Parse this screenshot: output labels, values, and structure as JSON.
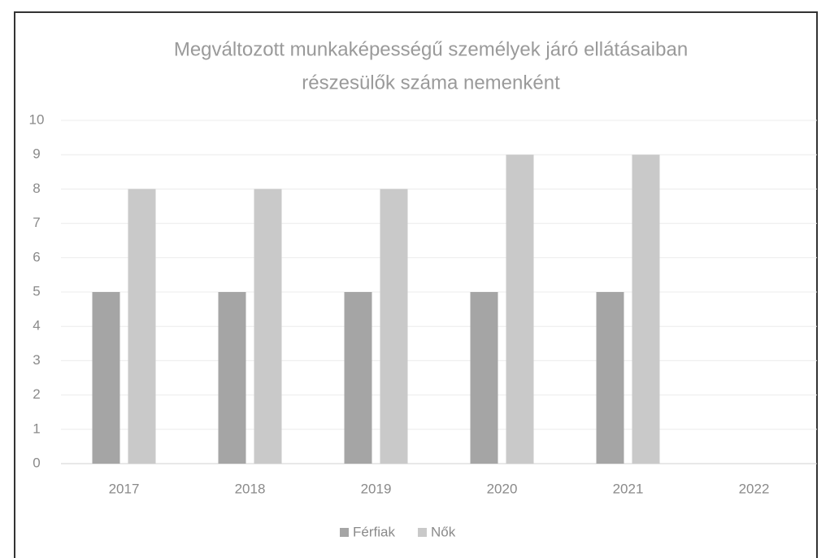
{
  "chart_data": {
    "type": "bar",
    "title": [
      "Megváltozott munkaképességű személyek járó ellátásaiban",
      "részesülők száma nemenként"
    ],
    "categories": [
      "2017",
      "2018",
      "2019",
      "2020",
      "2021",
      "2022"
    ],
    "series": [
      {
        "name": "Férfiak",
        "color": "#a5a5a5",
        "values": [
          5,
          5,
          5,
          5,
          5,
          null
        ]
      },
      {
        "name": "Nők",
        "color": "#c9c9c9",
        "values": [
          8,
          8,
          8,
          9,
          9,
          null
        ]
      }
    ],
    "ylim": [
      0,
      10
    ],
    "yticks": [
      0,
      1,
      2,
      3,
      4,
      5,
      6,
      7,
      8,
      9,
      10
    ],
    "grid": true,
    "legend": "bottom"
  }
}
